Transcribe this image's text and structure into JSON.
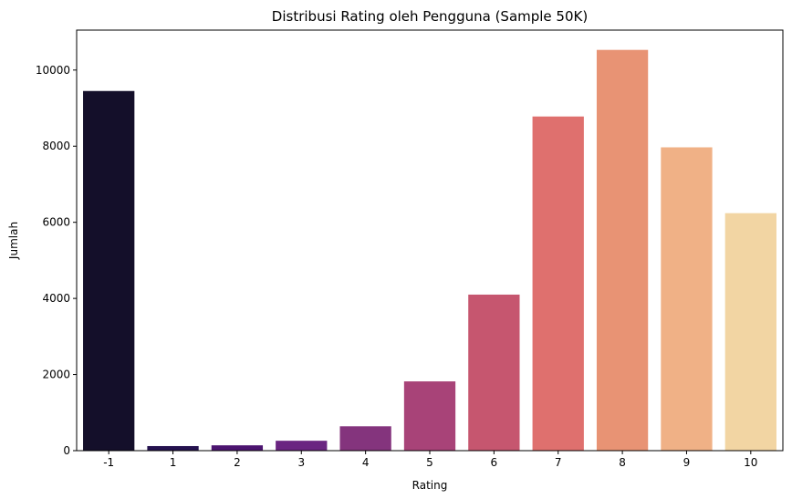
{
  "chart_data": {
    "type": "bar",
    "title": "Distribusi Rating oleh Pengguna (Sample 50K)",
    "xlabel": "Rating",
    "ylabel": "Jumlah",
    "categories": [
      "-1",
      "1",
      "2",
      "3",
      "4",
      "5",
      "6",
      "7",
      "8",
      "9",
      "10"
    ],
    "values": [
      9450,
      120,
      140,
      260,
      640,
      1820,
      4100,
      8780,
      10530,
      7970,
      6240
    ],
    "ylim": [
      0,
      11050
    ],
    "yticks": [
      0,
      2000,
      4000,
      6000,
      8000,
      10000
    ],
    "grid": false,
    "colors": [
      "#140f2a",
      "#25124f",
      "#4c1470",
      "#6a2581",
      "#84347d",
      "#a84378",
      "#c6566f",
      "#df706e",
      "#e89374",
      "#f0b186",
      "#f2d5a3"
    ]
  }
}
